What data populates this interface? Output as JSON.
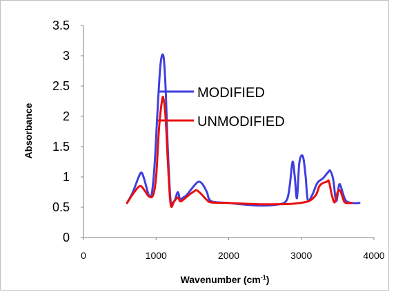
{
  "chart_data": {
    "type": "line",
    "title": "",
    "xlabel": "Wavenumber (cm",
    "xlabel_sup": "-1",
    "xlabel_close": ")",
    "ylabel": "Absorbance",
    "xlim": [
      0,
      4000
    ],
    "ylim": [
      0,
      3.5
    ],
    "x_ticks": [
      "0",
      "1000",
      "2000",
      "3000",
      "4000"
    ],
    "y_ticks": [
      "0",
      "0.5",
      "1",
      "1.5",
      "2",
      "2.5",
      "3",
      "3.5"
    ],
    "grid": false,
    "legend": {
      "placement": "inside-center"
    },
    "series": [
      {
        "name": "MODIFIED",
        "color": "#3f3fe0",
        "x": [
          600,
          680,
          760,
          800,
          840,
          900,
          940,
          980,
          1020,
          1060,
          1100,
          1130,
          1160,
          1200,
          1230,
          1260,
          1300,
          1330,
          1360,
          1420,
          1500,
          1580,
          1640,
          1700,
          1760,
          2000,
          2400,
          2700,
          2800,
          2840,
          2880,
          2910,
          2940,
          2970,
          3000,
          3030,
          3060,
          3090,
          3150,
          3220,
          3300,
          3370,
          3400,
          3440,
          3480,
          3520,
          3550,
          3580,
          3620,
          3700,
          3800
        ],
        "y": [
          0.57,
          0.75,
          1.0,
          1.07,
          0.95,
          0.7,
          0.72,
          1.2,
          2.1,
          2.85,
          3.0,
          2.5,
          1.5,
          0.6,
          0.58,
          0.62,
          0.75,
          0.62,
          0.65,
          0.7,
          0.82,
          0.92,
          0.88,
          0.75,
          0.6,
          0.57,
          0.53,
          0.55,
          0.62,
          0.85,
          1.25,
          1.0,
          0.65,
          1.2,
          1.35,
          1.3,
          1.0,
          0.62,
          0.7,
          0.9,
          0.98,
          1.08,
          1.1,
          0.95,
          0.6,
          0.87,
          0.82,
          0.7,
          0.6,
          0.57,
          0.57
        ]
      },
      {
        "name": "UNMODIFIED",
        "color": "#e81010",
        "x": [
          600,
          700,
          780,
          840,
          900,
          960,
          1000,
          1040,
          1080,
          1100,
          1130,
          1160,
          1200,
          1250,
          1300,
          1330,
          1370,
          1450,
          1520,
          1560,
          1620,
          1700,
          1760,
          2000,
          2400,
          2700,
          2900,
          3100,
          3200,
          3250,
          3300,
          3350,
          3380,
          3420,
          3460,
          3500,
          3530,
          3560,
          3600,
          3700
        ],
        "y": [
          0.57,
          0.75,
          0.85,
          0.78,
          0.68,
          0.7,
          1.0,
          1.8,
          2.25,
          2.3,
          2.0,
          1.3,
          0.55,
          0.6,
          0.66,
          0.6,
          0.62,
          0.7,
          0.76,
          0.78,
          0.72,
          0.62,
          0.58,
          0.57,
          0.55,
          0.55,
          0.56,
          0.6,
          0.7,
          0.85,
          0.9,
          0.92,
          0.93,
          0.7,
          0.58,
          0.75,
          0.78,
          0.7,
          0.58,
          0.57
        ]
      }
    ]
  }
}
